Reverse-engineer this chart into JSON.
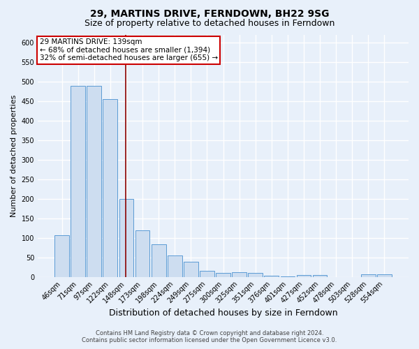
{
  "title1": "29, MARTINS DRIVE, FERNDOWN, BH22 9SG",
  "title2": "Size of property relative to detached houses in Ferndown",
  "xlabel": "Distribution of detached houses by size in Ferndown",
  "ylabel": "Number of detached properties",
  "categories": [
    "46sqm",
    "71sqm",
    "97sqm",
    "122sqm",
    "148sqm",
    "173sqm",
    "198sqm",
    "224sqm",
    "249sqm",
    "275sqm",
    "300sqm",
    "325sqm",
    "351sqm",
    "376sqm",
    "401sqm",
    "427sqm",
    "452sqm",
    "478sqm",
    "503sqm",
    "528sqm",
    "554sqm"
  ],
  "values": [
    107,
    490,
    490,
    455,
    200,
    120,
    83,
    55,
    38,
    15,
    10,
    11,
    10,
    3,
    1,
    5,
    5,
    0,
    0,
    6,
    6
  ],
  "bar_color": "#cdddf0",
  "bar_edge_color": "#5b9bd5",
  "red_line_index": 4,
  "annotation_line1": "29 MARTINS DRIVE: 139sqm",
  "annotation_line2": "← 68% of detached houses are smaller (1,394)",
  "annotation_line3": "32% of semi-detached houses are larger (655) →",
  "annotation_box_color": "#ffffff",
  "annotation_box_edge": "#cc0000",
  "red_line_color": "#8b0000",
  "ylim": [
    0,
    620
  ],
  "yticks": [
    0,
    50,
    100,
    150,
    200,
    250,
    300,
    350,
    400,
    450,
    500,
    550,
    600
  ],
  "footer1": "Contains HM Land Registry data © Crown copyright and database right 2024.",
  "footer2": "Contains public sector information licensed under the Open Government Licence v3.0.",
  "bg_color": "#e8f0fa",
  "plot_bg_color": "#e8f0fa",
  "grid_color": "#ffffff",
  "title1_fontsize": 10,
  "title2_fontsize": 9,
  "xlabel_fontsize": 9,
  "ylabel_fontsize": 8,
  "tick_fontsize": 7,
  "footer_fontsize": 6,
  "annot_fontsize": 7.5
}
